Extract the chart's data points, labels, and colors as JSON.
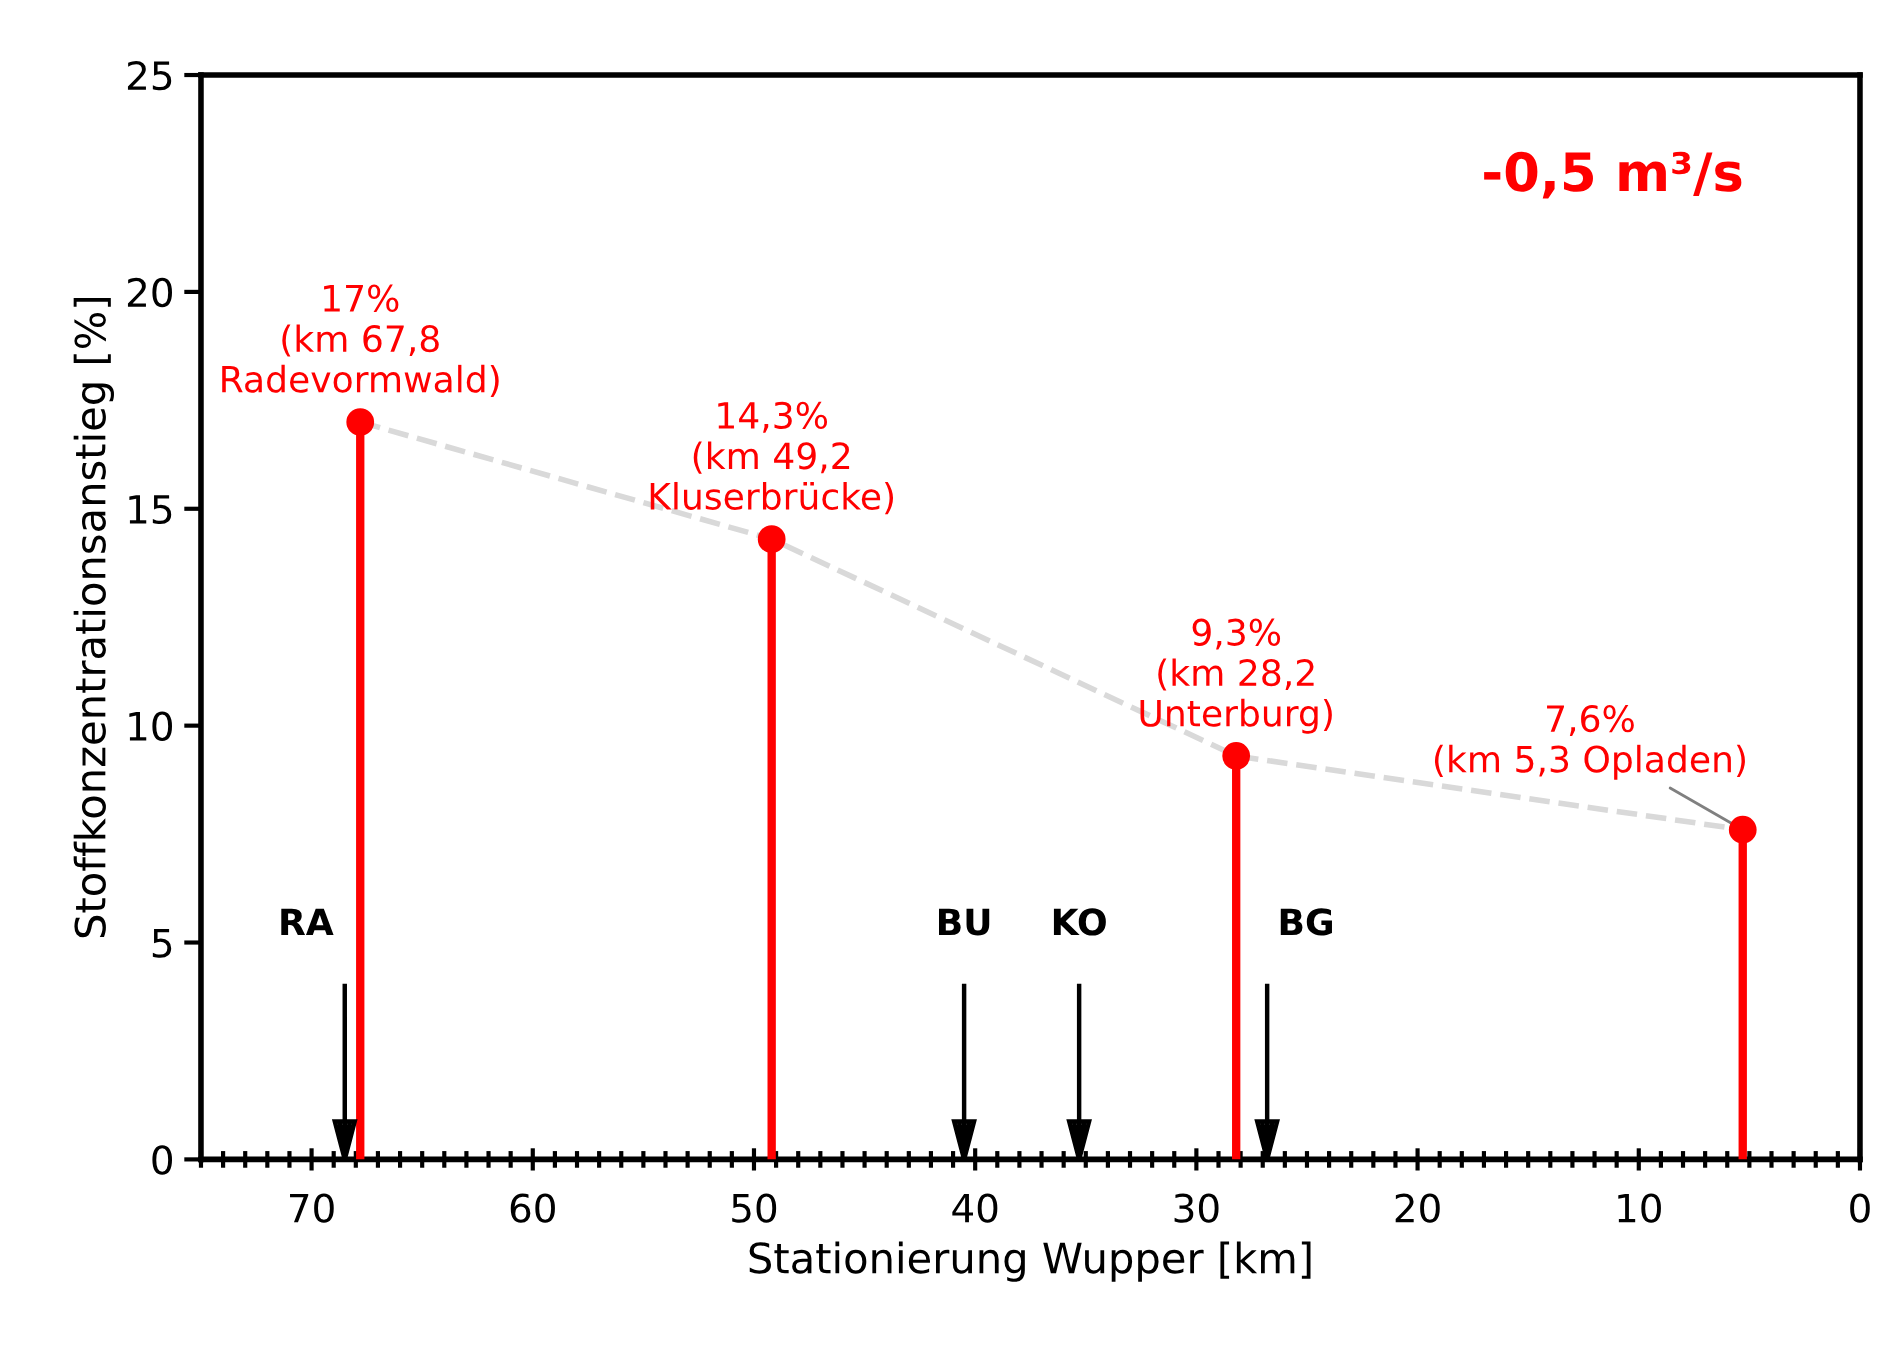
{
  "chart_data": {
    "type": "lollipop",
    "xlabel": "Stationierung Wupper [km]",
    "ylabel": "Stoffkonzentrationsanstieg [%]",
    "xlim": [
      75,
      0
    ],
    "xticks": [
      70,
      60,
      50,
      40,
      30,
      20,
      10,
      0
    ],
    "ylim": [
      0,
      25
    ],
    "yticks": [
      0,
      5,
      10,
      15,
      20,
      25
    ],
    "grid": false,
    "legend": false,
    "series": [
      {
        "type": "line",
        "color": "#d9d9d9",
        "line_style": "dashed",
        "marker": "none",
        "x": [
          67.8,
          49.2,
          28.2,
          5.3
        ],
        "values": [
          17,
          14.3,
          9.3,
          7.6
        ]
      },
      {
        "color": "#ff0000",
        "marker": "circle",
        "x": [
          67.8,
          49.2,
          28.2,
          5.3
        ],
        "values": [
          17,
          14.3,
          9.3,
          7.6
        ],
        "value_labels": [
          "17%\n(km 67,8\nRadevormwald)",
          "14,3%\n(km 49,2\nKluserbrücke)",
          "9,3%\n(km 28,2\nUnterburg)",
          "7,6%\n(km 5,3 Opladen)"
        ]
      }
    ],
    "annotations": [
      "-0,5 m³/s"
    ],
    "ref_lines": [
      {
        "axis": "x",
        "value": 68.5,
        "label": "RA",
        "color": "#000000"
      },
      {
        "axis": "x",
        "value": 40.5,
        "label": "BU",
        "color": "#000000"
      },
      {
        "axis": "x",
        "value": 35.3,
        "label": "KO",
        "color": "#000000"
      },
      {
        "axis": "x",
        "value": 26.8,
        "label": "BG",
        "color": "#000000"
      }
    ]
  }
}
